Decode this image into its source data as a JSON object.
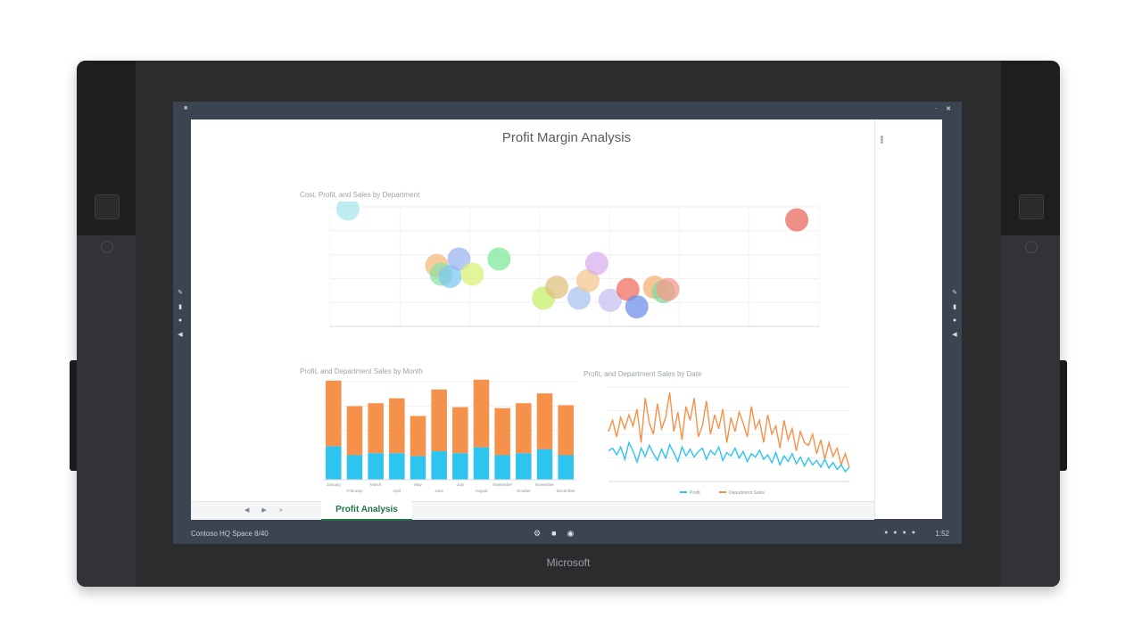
{
  "brand": "Microsoft",
  "document": {
    "title": "Profit Margin Analysis"
  },
  "sheet_tab": "Profit Analysis",
  "taskbar": {
    "location": "Contoso HQ Space 8/40",
    "time": "1:52"
  },
  "colors": {
    "excel_green": "#217346",
    "cost_orange": "#f5914a",
    "profit_blue": "#2ec4f0"
  },
  "chart_data": [
    {
      "type": "scatter",
      "title": "Cost, Profit, and Sales by Department",
      "x": [
        420,
        520,
        525,
        535,
        545,
        560,
        590,
        640,
        655,
        680,
        690,
        700,
        715,
        735,
        745,
        765,
        775,
        780,
        925
      ],
      "y": [
        2290,
        2030,
        1990,
        1980,
        2060,
        1990,
        2060,
        1880,
        1930,
        1880,
        1960,
        2040,
        1870,
        1920,
        1840,
        1930,
        1910,
        1920,
        2240
      ],
      "colors": [
        "#a8e6ee",
        "#f5b97a",
        "#8fe0a6",
        "#7fc8f0",
        "#9eb5f0",
        "#d8f27a",
        "#7fe89a",
        "#c4f06a",
        "#e0c080",
        "#aac4f0",
        "#f5c890",
        "#d8b0f0",
        "#c8c0f0",
        "#f07060",
        "#7090e8",
        "#f5b070",
        "#80d8a0",
        "#f59a8a",
        "#e86a60"
      ]
    },
    {
      "type": "bar",
      "title": "Profit, and Department Sales by Month",
      "categories": [
        "January",
        "February",
        "March",
        "April",
        "May",
        "June",
        "July",
        "August",
        "September",
        "October",
        "November",
        "December"
      ],
      "series": [
        {
          "name": "Profit",
          "values": [
            340,
            250,
            270,
            270,
            240,
            290,
            270,
            330,
            250,
            270,
            310,
            250
          ]
        },
        {
          "name": "Department Sales",
          "values": [
            670,
            500,
            510,
            560,
            410,
            630,
            470,
            690,
            480,
            510,
            570,
            510
          ]
        }
      ],
      "ylim": [
        0,
        1000
      ]
    },
    {
      "type": "line",
      "title": "Profit, and Department Sales by Date",
      "legend": [
        "Profit",
        "Department Sales"
      ],
      "series": [
        {
          "name": "Profit",
          "values": [
            55,
            60,
            48,
            62,
            40,
            70,
            55,
            35,
            60,
            45,
            65,
            50,
            38,
            58,
            42,
            66,
            52,
            36,
            62,
            46,
            58,
            44,
            54,
            60,
            40,
            56,
            48,
            62,
            38,
            52,
            46,
            60,
            42,
            54,
            36,
            50,
            44,
            56,
            40,
            48,
            34,
            52,
            30,
            46,
            36,
            50,
            32,
            44,
            28,
            42,
            30,
            38,
            26,
            40,
            24,
            34,
            22,
            30,
            18,
            26
          ]
        },
        {
          "name": "Department Sales",
          "values": [
            90,
            110,
            80,
            115,
            95,
            120,
            100,
            130,
            70,
            150,
            105,
            85,
            140,
            95,
            115,
            160,
            90,
            125,
            75,
            135,
            110,
            150,
            80,
            100,
            145,
            85,
            120,
            95,
            130,
            70,
            115,
            90,
            125,
            105,
            80,
            135,
            95,
            110,
            70,
            120,
            85,
            100,
            60,
            110,
            75,
            95,
            55,
            90,
            70,
            65,
            85,
            50,
            75,
            40,
            70,
            45,
            60,
            30,
            50,
            25
          ]
        }
      ]
    }
  ]
}
